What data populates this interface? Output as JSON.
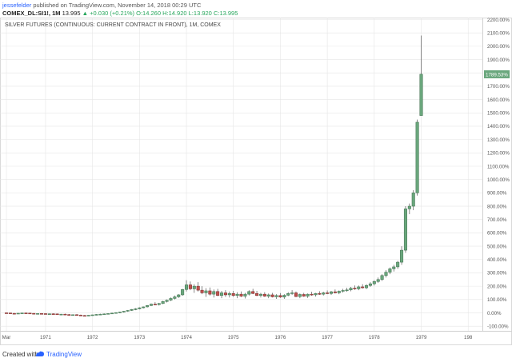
{
  "header": {
    "user": "jessefelder",
    "published": "published on TradingView.com, November 14, 2018 00:29 UTC",
    "symbol": "COMEX_DL:SI1!, 1M",
    "last": "13.995",
    "change": "▲ +0.030 (+0.21%)",
    "ohlc_o": "O:14.260",
    "ohlc_h": "H:14.920",
    "ohlc_l": "L:13.920",
    "ohlc_c": "C:13.995"
  },
  "footer": {
    "created_with": "Created with",
    "brand": "TradingView"
  },
  "colors": {
    "up": "#6aa77d",
    "up_stroke": "#3d6f4c",
    "down": "#c0504d",
    "down_stroke": "#7a2b29",
    "wick": "#555555",
    "grid": "#e6e6e6",
    "last_label_bg": "#6aa77d"
  },
  "chart_data": {
    "type": "candlestick",
    "title": "SILVER FUTURES (CONTINUOUS: CURRENT CONTRACT IN FRONT), 1M, COMEX",
    "x_tick_labels": [
      "Mar",
      "1971",
      "1972",
      "1973",
      "1974",
      "1975",
      "1976",
      "1977",
      "1978",
      "1979",
      "198"
    ],
    "y_tick_labels": [
      "-100.00%",
      "0.00%",
      "100.00%",
      "200.00%",
      "300.00%",
      "400.00%",
      "500.00%",
      "600.00%",
      "700.00%",
      "800.00%",
      "900.00%",
      "1000.00%",
      "1100.00%",
      "1200.00%",
      "1300.00%",
      "1400.00%",
      "1500.00%",
      "1600.00%",
      "1700.00%",
      "1800.00%",
      "1900.00%",
      "2000.00%",
      "2100.00%",
      "2200.00%"
    ],
    "y_tick_values": [
      -100,
      0,
      100,
      200,
      300,
      400,
      500,
      600,
      700,
      800,
      900,
      1000,
      1100,
      1200,
      1300,
      1400,
      1500,
      1600,
      1700,
      1800,
      1900,
      2000,
      2100,
      2200
    ],
    "ylim": [
      -135,
      2215
    ],
    "x_unit": "months since Mar 1970",
    "x_range": [
      0,
      120
    ],
    "x_tick_positions": [
      0,
      10,
      22,
      34,
      46,
      58,
      70,
      82,
      94,
      106,
      118
    ],
    "y_unit": "percent change",
    "last_value_label": "1789.53%",
    "last_value": 1789.53,
    "candles": [
      [
        0,
        0,
        2,
        -3,
        -1
      ],
      [
        1,
        -1,
        1,
        -5,
        -4
      ],
      [
        2,
        -4,
        -1,
        -7,
        -6
      ],
      [
        3,
        -6,
        -2,
        -8,
        -3
      ],
      [
        4,
        -3,
        1,
        -5,
        -1
      ],
      [
        5,
        -1,
        2,
        -4,
        -2
      ],
      [
        6,
        -2,
        0,
        -5,
        -4
      ],
      [
        7,
        -4,
        -2,
        -9,
        -7
      ],
      [
        8,
        -7,
        -3,
        -10,
        -5
      ],
      [
        9,
        -5,
        -2,
        -8,
        -6
      ],
      [
        10,
        -6,
        -3,
        -10,
        -9
      ],
      [
        11,
        -9,
        -5,
        -12,
        -7
      ],
      [
        12,
        -7,
        -4,
        -10,
        -8
      ],
      [
        13,
        -8,
        -5,
        -13,
        -12
      ],
      [
        14,
        -12,
        -8,
        -16,
        -10
      ],
      [
        15,
        -10,
        -6,
        -14,
        -13
      ],
      [
        16,
        -13,
        -9,
        -18,
        -16
      ],
      [
        17,
        -16,
        -12,
        -20,
        -14
      ],
      [
        18,
        -14,
        -10,
        -18,
        -17
      ],
      [
        19,
        -17,
        -13,
        -22,
        -20
      ],
      [
        20,
        -20,
        -16,
        -24,
        -22
      ],
      [
        21,
        -22,
        -17,
        -25,
        -18
      ],
      [
        22,
        -18,
        -14,
        -22,
        -15
      ],
      [
        23,
        -15,
        -10,
        -19,
        -12
      ],
      [
        24,
        -12,
        -7,
        -16,
        -10
      ],
      [
        25,
        -10,
        -5,
        -14,
        -8
      ],
      [
        26,
        -8,
        -3,
        -11,
        -5
      ],
      [
        27,
        -5,
        1,
        -9,
        -2
      ],
      [
        28,
        -2,
        4,
        -6,
        2
      ],
      [
        29,
        2,
        8,
        -2,
        6
      ],
      [
        30,
        6,
        14,
        2,
        12
      ],
      [
        31,
        12,
        20,
        8,
        18
      ],
      [
        32,
        18,
        28,
        14,
        25
      ],
      [
        33,
        25,
        35,
        20,
        30
      ],
      [
        34,
        30,
        42,
        26,
        38
      ],
      [
        35,
        38,
        48,
        33,
        45
      ],
      [
        36,
        45,
        58,
        40,
        55
      ],
      [
        37,
        55,
        70,
        50,
        65
      ],
      [
        38,
        65,
        80,
        58,
        62
      ],
      [
        39,
        62,
        75,
        55,
        70
      ],
      [
        40,
        70,
        90,
        66,
        85
      ],
      [
        41,
        85,
        100,
        78,
        95
      ],
      [
        42,
        95,
        115,
        88,
        108
      ],
      [
        43,
        108,
        130,
        100,
        120
      ],
      [
        44,
        120,
        140,
        112,
        135
      ],
      [
        45,
        135,
        180,
        128,
        175
      ],
      [
        46,
        175,
        245,
        160,
        210
      ],
      [
        47,
        210,
        235,
        170,
        180
      ],
      [
        48,
        180,
        215,
        150,
        200
      ],
      [
        49,
        200,
        230,
        160,
        170
      ],
      [
        50,
        170,
        200,
        140,
        150
      ],
      [
        51,
        150,
        185,
        120,
        165
      ],
      [
        52,
        165,
        190,
        130,
        140
      ],
      [
        53,
        140,
        175,
        115,
        160
      ],
      [
        54,
        160,
        180,
        125,
        130
      ],
      [
        55,
        130,
        165,
        110,
        150
      ],
      [
        56,
        150,
        170,
        120,
        135
      ],
      [
        57,
        135,
        160,
        115,
        145
      ],
      [
        58,
        145,
        165,
        120,
        130
      ],
      [
        59,
        130,
        155,
        110,
        140
      ],
      [
        60,
        140,
        160,
        118,
        125
      ],
      [
        61,
        125,
        150,
        108,
        140
      ],
      [
        62,
        140,
        170,
        130,
        160
      ],
      [
        63,
        160,
        180,
        140,
        145
      ],
      [
        64,
        145,
        165,
        125,
        130
      ],
      [
        65,
        130,
        150,
        115,
        140
      ],
      [
        66,
        140,
        155,
        120,
        125
      ],
      [
        67,
        125,
        145,
        110,
        135
      ],
      [
        68,
        135,
        150,
        115,
        120
      ],
      [
        69,
        120,
        140,
        105,
        130
      ],
      [
        70,
        130,
        148,
        112,
        118
      ],
      [
        71,
        118,
        140,
        105,
        132
      ],
      [
        72,
        132,
        155,
        125,
        145
      ],
      [
        73,
        145,
        170,
        135,
        150
      ],
      [
        74,
        150,
        160,
        118,
        122
      ],
      [
        75,
        122,
        145,
        110,
        138
      ],
      [
        76,
        138,
        150,
        120,
        125
      ],
      [
        77,
        125,
        145,
        112,
        140
      ],
      [
        78,
        140,
        158,
        128,
        135
      ],
      [
        79,
        135,
        150,
        122,
        145
      ],
      [
        80,
        145,
        162,
        135,
        140
      ],
      [
        81,
        140,
        158,
        130,
        150
      ],
      [
        82,
        150,
        168,
        140,
        145
      ],
      [
        83,
        145,
        165,
        135,
        158
      ],
      [
        84,
        158,
        175,
        145,
        150
      ],
      [
        85,
        150,
        168,
        140,
        162
      ],
      [
        86,
        162,
        180,
        152,
        168
      ],
      [
        87,
        168,
        188,
        158,
        172
      ],
      [
        88,
        172,
        195,
        162,
        185
      ],
      [
        89,
        185,
        205,
        172,
        180
      ],
      [
        90,
        180,
        205,
        170,
        195
      ],
      [
        91,
        195,
        215,
        182,
        188
      ],
      [
        92,
        188,
        215,
        178,
        205
      ],
      [
        93,
        205,
        230,
        195,
        218
      ],
      [
        94,
        218,
        245,
        205,
        235
      ],
      [
        95,
        235,
        265,
        225,
        250
      ],
      [
        96,
        250,
        290,
        240,
        280
      ],
      [
        97,
        280,
        320,
        265,
        305
      ],
      [
        98,
        305,
        340,
        290,
        330
      ],
      [
        99,
        330,
        360,
        310,
        345
      ],
      [
        100,
        345,
        390,
        330,
        380
      ],
      [
        101,
        380,
        500,
        360,
        470
      ],
      [
        102,
        470,
        800,
        450,
        780
      ],
      [
        103,
        780,
        820,
        740,
        800
      ],
      [
        104,
        800,
        920,
        770,
        900
      ],
      [
        105,
        900,
        1450,
        880,
        1430
      ],
      [
        106,
        1480,
        2080,
        1480,
        1790
      ]
    ]
  }
}
